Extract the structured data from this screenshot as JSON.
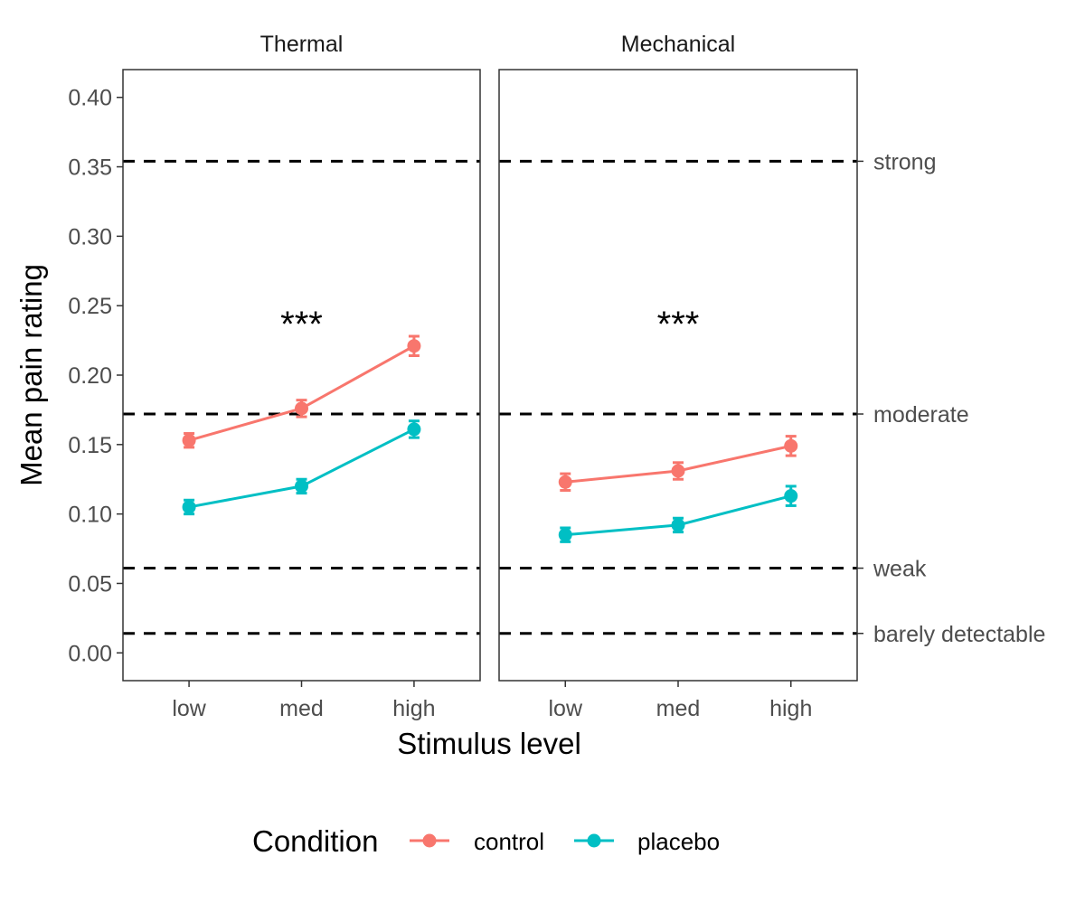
{
  "chart_data": {
    "type": "line",
    "xlabel": "Stimulus level",
    "ylabel": "Mean pain rating",
    "ylim": [
      -0.02,
      0.42
    ],
    "yticks": [
      {
        "value": 0.0,
        "label": "0.00"
      },
      {
        "value": 0.05,
        "label": "0.05"
      },
      {
        "value": 0.1,
        "label": "0.10"
      },
      {
        "value": 0.15,
        "label": "0.15"
      },
      {
        "value": 0.2,
        "label": "0.20"
      },
      {
        "value": 0.25,
        "label": "0.25"
      },
      {
        "value": 0.3,
        "label": "0.30"
      },
      {
        "value": 0.35,
        "label": "0.35"
      },
      {
        "value": 0.4,
        "label": "0.40"
      }
    ],
    "categories": [
      "low",
      "med",
      "high"
    ],
    "grid": false,
    "legend": {
      "title": "Condition",
      "position": "bottom",
      "entries": [
        "control",
        "placebo"
      ]
    },
    "colors": {
      "control": "#f8766d",
      "placebo": "#00bfc4"
    },
    "reference_lines": [
      {
        "value": 0.354,
        "label": "strong"
      },
      {
        "value": 0.172,
        "label": "moderate"
      },
      {
        "value": 0.061,
        "label": "weak"
      },
      {
        "value": 0.014,
        "label": "barely detectable"
      }
    ],
    "panels": [
      {
        "title": "Thermal",
        "annotation": {
          "text": "***",
          "x": "med",
          "y": 0.245
        },
        "series": [
          {
            "name": "control",
            "values": [
              0.153,
              0.176,
              0.221
            ],
            "err": [
              0.005,
              0.006,
              0.007
            ]
          },
          {
            "name": "placebo",
            "values": [
              0.105,
              0.12,
              0.161
            ],
            "err": [
              0.005,
              0.005,
              0.006
            ]
          }
        ]
      },
      {
        "title": "Mechanical",
        "annotation": {
          "text": "***",
          "x": "med",
          "y": 0.245
        },
        "series": [
          {
            "name": "control",
            "values": [
              0.123,
              0.131,
              0.149
            ],
            "err": [
              0.006,
              0.006,
              0.007
            ]
          },
          {
            "name": "placebo",
            "values": [
              0.085,
              0.092,
              0.113
            ],
            "err": [
              0.005,
              0.005,
              0.007
            ]
          }
        ]
      }
    ]
  }
}
